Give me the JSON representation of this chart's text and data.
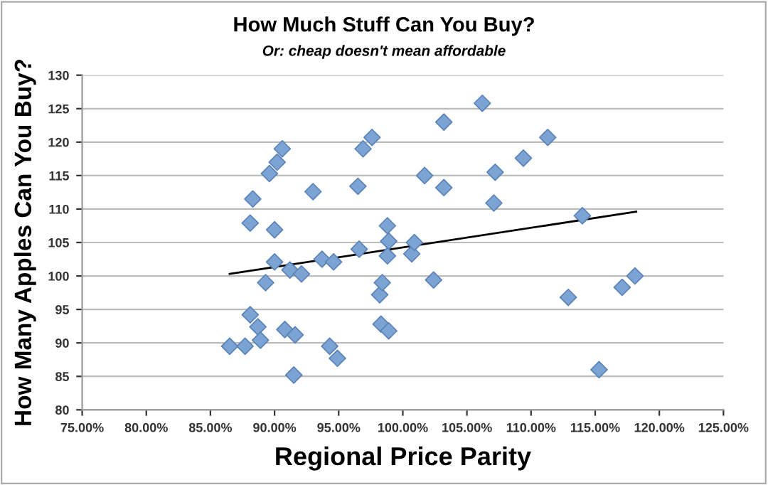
{
  "chart_data": {
    "type": "scatter",
    "title": "How Much Stuff Can You Buy?",
    "subtitle": "Or: cheap doesn't mean affordable",
    "xlabel": "Regional Price Parity",
    "ylabel": "How Many Apples Can You Buy?",
    "grid": "y",
    "legend": false,
    "xlim": [
      75,
      125
    ],
    "ylim": [
      80,
      130
    ],
    "xticks": [
      {
        "value": 75,
        "label": "75.00%"
      },
      {
        "value": 80,
        "label": "80.00%"
      },
      {
        "value": 85,
        "label": "85.00%"
      },
      {
        "value": 90,
        "label": "90.00%"
      },
      {
        "value": 95,
        "label": "95.00%"
      },
      {
        "value": 100,
        "label": "100.00%"
      },
      {
        "value": 105,
        "label": "105.00%"
      },
      {
        "value": 110,
        "label": "110.00%"
      },
      {
        "value": 115,
        "label": "115.00%"
      },
      {
        "value": 120,
        "label": "120.00%"
      },
      {
        "value": 125,
        "label": "125.00%"
      }
    ],
    "yticks": [
      80,
      85,
      90,
      95,
      100,
      105,
      110,
      115,
      120,
      125,
      130
    ],
    "series": [
      {
        "color": "#7ba3d3",
        "marker": "diamond",
        "x": [
          86.5,
          87.7,
          88.1,
          88.7,
          88.9,
          88.1,
          88.3,
          89.3,
          89.6,
          90.0,
          90.0,
          90.2,
          90.6,
          90.8,
          91.2,
          91.6,
          91.5,
          92.1,
          93.0,
          93.7,
          94.3,
          94.6,
          94.9,
          96.5,
          96.6,
          96.9,
          97.6,
          98.2,
          98.4,
          98.3,
          98.9,
          98.8,
          98.9,
          98.8,
          100.7,
          100.9,
          102.4,
          101.7,
          103.2,
          103.2,
          106.2,
          107.2,
          107.1,
          109.4,
          111.3,
          112.9,
          114.0,
          115.3,
          117.1,
          118.1
        ],
        "values": [
          89.5,
          89.5,
          94.2,
          92.4,
          90.4,
          107.9,
          111.5,
          99.0,
          115.3,
          102.1,
          106.9,
          117.0,
          119.0,
          92.0,
          100.9,
          91.2,
          85.2,
          100.3,
          112.6,
          102.5,
          89.5,
          102.1,
          87.7,
          113.4,
          104.0,
          119.0,
          120.7,
          97.2,
          99.0,
          92.8,
          91.8,
          107.5,
          105.2,
          103.0,
          103.3,
          105.0,
          99.4,
          115.0,
          123.0,
          113.2,
          125.8,
          115.5,
          110.9,
          117.6,
          120.7,
          96.8,
          109.0,
          86.0,
          98.3,
          100.0
        ]
      },
      {
        "type": "line",
        "marker": "none",
        "color": "#000000",
        "x": [
          86.5,
          118.2
        ],
        "values": [
          100.3,
          109.6
        ]
      }
    ]
  }
}
